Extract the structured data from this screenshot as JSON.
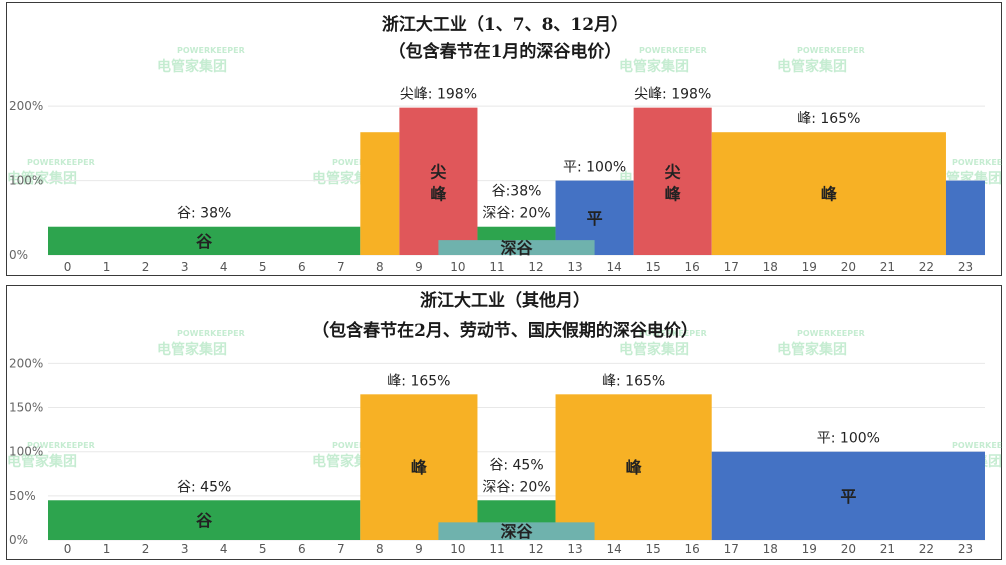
{
  "watermark": {
    "brand": "POWERKEEPER",
    "name": "电管家集团"
  },
  "chart_data": [
    {
      "type": "bar",
      "title": "浙江大工业（1、7、8、12月）",
      "subtitle": "（包含春节在1月的深谷电价）",
      "x_ticks": [
        "0",
        "1",
        "2",
        "3",
        "4",
        "5",
        "6",
        "7",
        "8",
        "9",
        "10",
        "11",
        "12",
        "13",
        "14",
        "15",
        "16",
        "17",
        "18",
        "19",
        "20",
        "21",
        "22",
        "23"
      ],
      "y_ticks": [
        {
          "value": 0,
          "label": "0%"
        },
        {
          "value": 100,
          "label": "100%"
        },
        {
          "value": 200,
          "label": "200%"
        }
      ],
      "ylim": [
        0,
        215
      ],
      "segments": [
        {
          "name": "valley",
          "start": -0.5,
          "end": 7.5,
          "value": 38,
          "color": "#2da44e",
          "inner": "谷",
          "label": "谷: 38%"
        },
        {
          "name": "peak",
          "start": 7.5,
          "end": 8.5,
          "value": 165,
          "color": "#f7b125",
          "inner": "",
          "label": ""
        },
        {
          "name": "sharp-peak",
          "start": 8.5,
          "end": 10.5,
          "value": 198,
          "color": "#e0575a",
          "inner": "尖\n峰",
          "label": "尖峰: 198%"
        },
        {
          "name": "valley",
          "start": 10.5,
          "end": 12.5,
          "value": 38,
          "color": "#2da44e",
          "inner": "",
          "label": "谷:38%"
        },
        {
          "name": "flat",
          "start": 12.5,
          "end": 14.5,
          "value": 100,
          "color": "#4472c4",
          "inner": "平",
          "label": "平: 100%"
        },
        {
          "name": "sharp-peak",
          "start": 14.5,
          "end": 16.5,
          "value": 198,
          "color": "#e0575a",
          "inner": "尖\n峰",
          "label": "尖峰: 198%"
        },
        {
          "name": "peak",
          "start": 16.5,
          "end": 22.5,
          "value": 165,
          "color": "#f7b125",
          "inner": "峰",
          "label": "峰: 165%"
        },
        {
          "name": "flat",
          "start": 22.5,
          "end": 23.5,
          "value": 100,
          "color": "#4472c4",
          "inner": "",
          "label": ""
        }
      ],
      "deep_valley": {
        "start": 9.5,
        "end": 13.5,
        "value": 20,
        "color": "#6fb2ad",
        "inner": "深谷",
        "label": "深谷: 20%"
      }
    },
    {
      "type": "bar",
      "title": "浙江大工业（其他月）",
      "subtitle": "（包含春节在2月、劳动节、国庆假期的深谷电价）",
      "x_ticks": [
        "0",
        "1",
        "2",
        "3",
        "4",
        "5",
        "6",
        "7",
        "8",
        "9",
        "10",
        "11",
        "12",
        "13",
        "14",
        "15",
        "16",
        "17",
        "18",
        "19",
        "20",
        "21",
        "22",
        "23"
      ],
      "y_ticks": [
        {
          "value": 0,
          "label": "0%"
        },
        {
          "value": 50,
          "label": "50%"
        },
        {
          "value": 100,
          "label": "100%"
        },
        {
          "value": 150,
          "label": "150%"
        },
        {
          "value": 200,
          "label": "200%"
        }
      ],
      "ylim": [
        0,
        205
      ],
      "segments": [
        {
          "name": "valley",
          "start": -0.5,
          "end": 7.5,
          "value": 45,
          "color": "#2da44e",
          "inner": "谷",
          "label": "谷: 45%"
        },
        {
          "name": "peak",
          "start": 7.5,
          "end": 10.5,
          "value": 165,
          "color": "#f7b125",
          "inner": "峰",
          "label": "峰: 165%"
        },
        {
          "name": "valley",
          "start": 10.5,
          "end": 12.5,
          "value": 45,
          "color": "#2da44e",
          "inner": "",
          "label": "谷: 45%"
        },
        {
          "name": "peak",
          "start": 12.5,
          "end": 16.5,
          "value": 165,
          "color": "#f7b125",
          "inner": "峰",
          "label": "峰: 165%"
        },
        {
          "name": "flat",
          "start": 16.5,
          "end": 23.5,
          "value": 100,
          "color": "#4472c4",
          "inner": "平",
          "label": "平: 100%"
        }
      ],
      "deep_valley": {
        "start": 9.5,
        "end": 13.5,
        "value": 20,
        "color": "#6fb2ad",
        "inner": "深谷",
        "label": "深谷: 20%"
      }
    }
  ]
}
